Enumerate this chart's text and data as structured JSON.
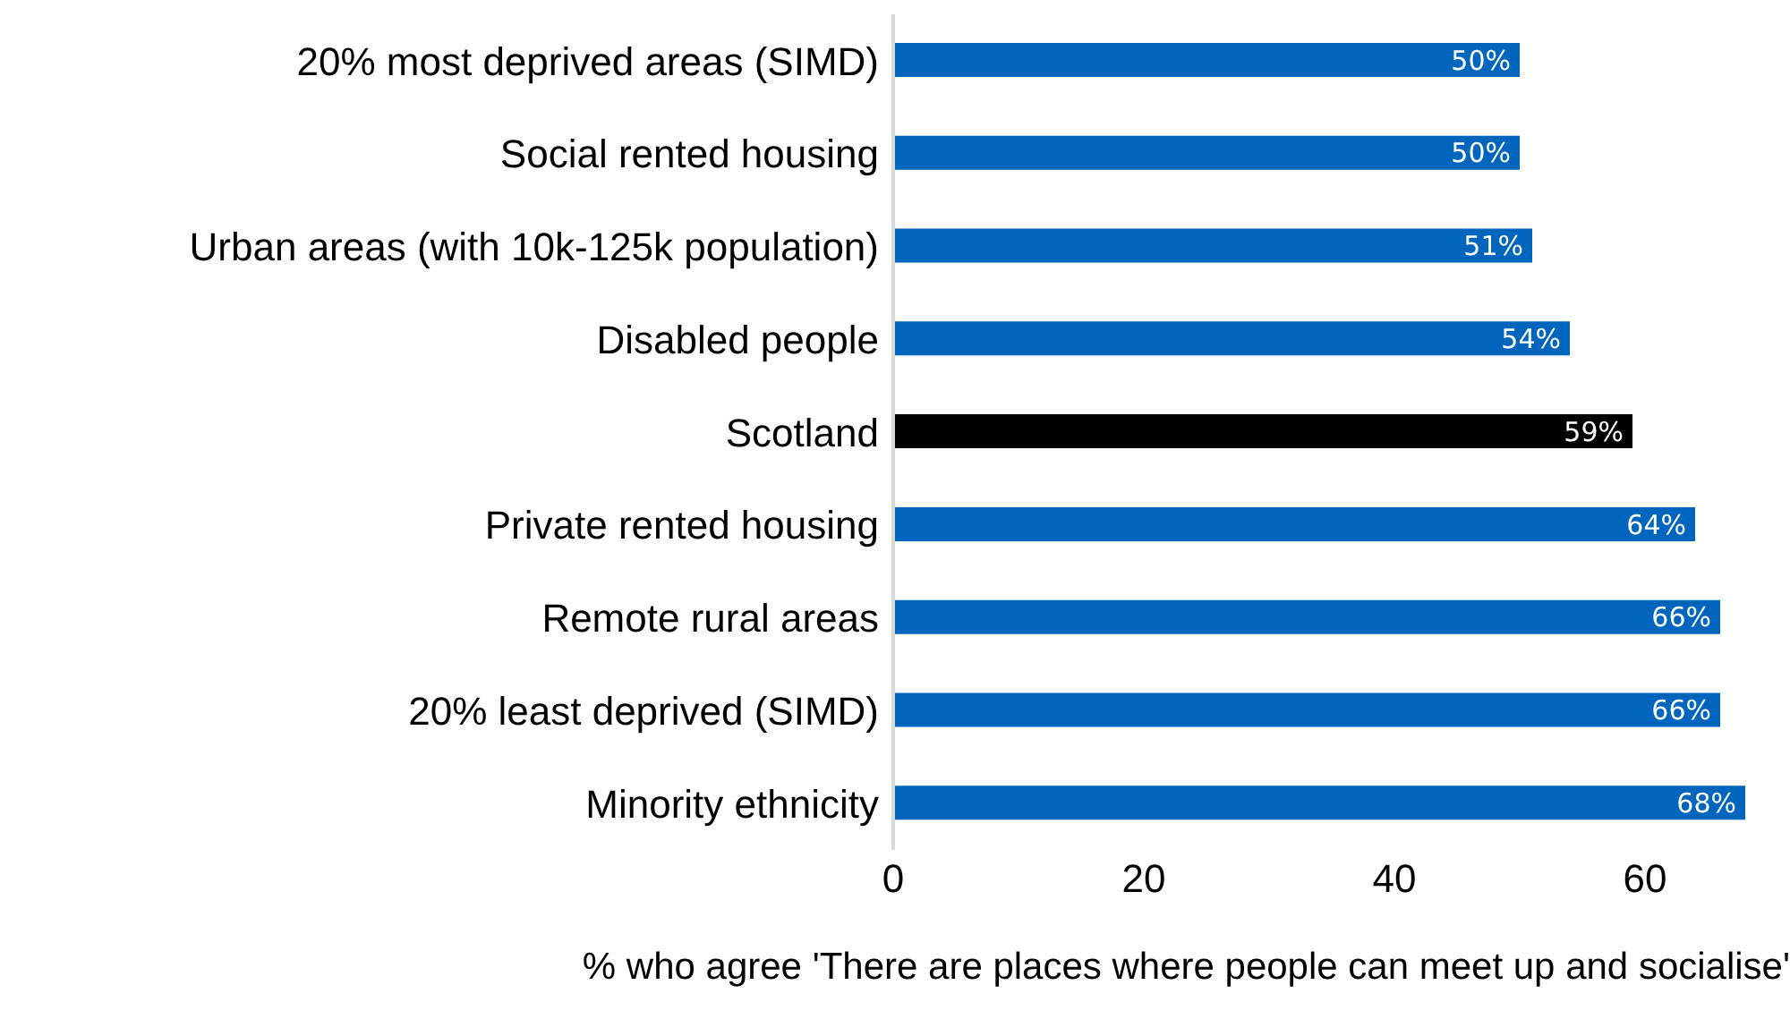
{
  "chart_data": {
    "type": "bar",
    "orientation": "horizontal",
    "xlabel": "% who agree 'There are places where people can meet up and socialise'",
    "categories": [
      "20% most deprived areas (SIMD)",
      "Social rented housing",
      "Urban areas (with 10k-125k population)",
      "Disabled people",
      "Scotland",
      "Private rented housing",
      "Remote rural areas",
      "20% least deprived (SIMD)",
      "Minority ethnicity"
    ],
    "values": [
      50,
      50,
      51,
      54,
      59,
      64,
      66,
      66,
      68
    ],
    "value_labels": [
      "50%",
      "50%",
      "51%",
      "54%",
      "59%",
      "64%",
      "66%",
      "66%",
      "68%"
    ],
    "colors": [
      "#0065bd",
      "#0065bd",
      "#0065bd",
      "#0065bd",
      "#000000",
      "#0065bd",
      "#0065bd",
      "#0065bd",
      "#0065bd"
    ],
    "xlim": [
      0,
      68
    ],
    "xticks": [
      0,
      20,
      40,
      60
    ],
    "grid": false,
    "legend": false
  }
}
